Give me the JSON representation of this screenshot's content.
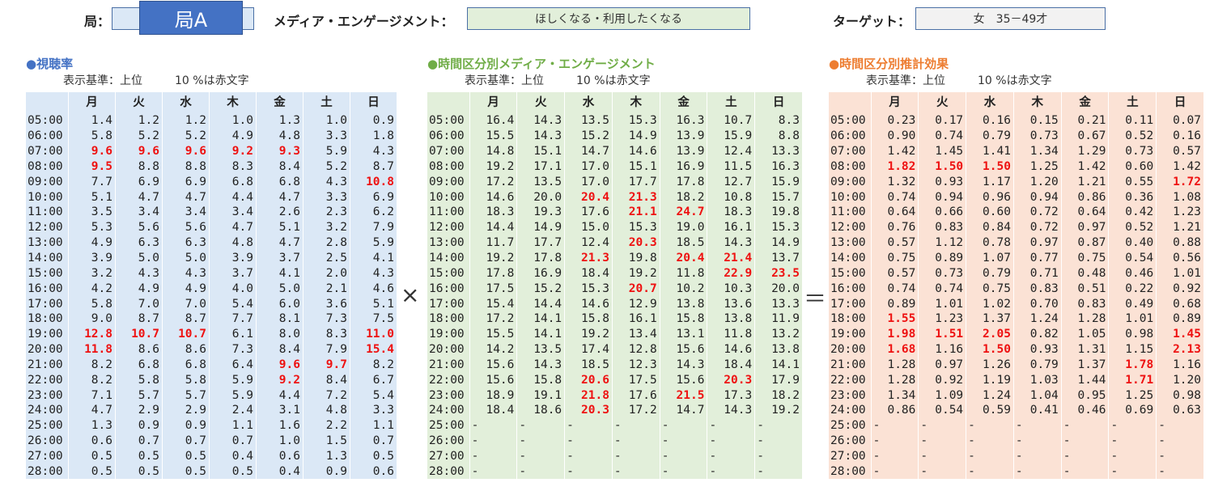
{
  "header": {
    "station_label": "局：",
    "station_value": "局A",
    "media_label": "メディア・エンゲージメント：",
    "media_value": "ほしくなる・利用したくなる",
    "target_label": "ターゲット：",
    "target_value": "女　35－49才"
  },
  "days": [
    "月",
    "火",
    "水",
    "木",
    "金",
    "土",
    "日"
  ],
  "operators": {
    "times": "×",
    "equals": "＝"
  },
  "sections": [
    {
      "title": "●視聴率",
      "title_color": "#4472c4",
      "sub_basis": "表示基準：上位",
      "sub_pct": "10 %は赤文字",
      "rows": [
        {
          "time": "05:00",
          "values": [
            "1.4",
            "1.2",
            "1.2",
            "1.0",
            "1.3",
            "1.0",
            "0.9"
          ],
          "highlight": []
        },
        {
          "time": "06:00",
          "values": [
            "5.8",
            "5.2",
            "5.2",
            "4.9",
            "4.8",
            "3.3",
            "1.8"
          ],
          "highlight": []
        },
        {
          "time": "07:00",
          "values": [
            "9.6",
            "9.6",
            "9.6",
            "9.2",
            "9.3",
            "5.9",
            "4.3"
          ],
          "highlight": [
            0,
            1,
            2,
            3,
            4
          ]
        },
        {
          "time": "08:00",
          "values": [
            "9.5",
            "8.8",
            "8.8",
            "8.3",
            "8.4",
            "5.2",
            "8.7"
          ],
          "highlight": [
            0
          ]
        },
        {
          "time": "09:00",
          "values": [
            "7.7",
            "6.9",
            "6.9",
            "6.8",
            "6.8",
            "4.3",
            "10.8"
          ],
          "highlight": [
            6
          ]
        },
        {
          "time": "10:00",
          "values": [
            "5.1",
            "4.7",
            "4.7",
            "4.4",
            "4.7",
            "3.3",
            "6.9"
          ],
          "highlight": []
        },
        {
          "time": "11:00",
          "values": [
            "3.5",
            "3.4",
            "3.4",
            "3.4",
            "2.6",
            "2.3",
            "6.2"
          ],
          "highlight": []
        },
        {
          "time": "12:00",
          "values": [
            "5.3",
            "5.6",
            "5.6",
            "4.7",
            "5.1",
            "3.2",
            "7.9"
          ],
          "highlight": []
        },
        {
          "time": "13:00",
          "values": [
            "4.9",
            "6.3",
            "6.3",
            "4.8",
            "4.7",
            "2.8",
            "5.9"
          ],
          "highlight": []
        },
        {
          "time": "14:00",
          "values": [
            "3.9",
            "5.0",
            "5.0",
            "3.9",
            "3.7",
            "2.5",
            "4.1"
          ],
          "highlight": []
        },
        {
          "time": "15:00",
          "values": [
            "3.2",
            "4.3",
            "4.3",
            "3.7",
            "4.1",
            "2.0",
            "4.3"
          ],
          "highlight": []
        },
        {
          "time": "16:00",
          "values": [
            "4.2",
            "4.9",
            "4.9",
            "4.0",
            "5.0",
            "2.1",
            "4.6"
          ],
          "highlight": []
        },
        {
          "time": "17:00",
          "values": [
            "5.8",
            "7.0",
            "7.0",
            "5.4",
            "6.0",
            "3.6",
            "5.1"
          ],
          "highlight": []
        },
        {
          "time": "18:00",
          "values": [
            "9.0",
            "8.7",
            "8.7",
            "7.7",
            "8.1",
            "7.3",
            "7.5"
          ],
          "highlight": []
        },
        {
          "time": "19:00",
          "values": [
            "12.8",
            "10.7",
            "10.7",
            "6.1",
            "8.0",
            "8.3",
            "11.0"
          ],
          "highlight": [
            0,
            1,
            2,
            6
          ]
        },
        {
          "time": "20:00",
          "values": [
            "11.8",
            "8.6",
            "8.6",
            "7.3",
            "8.4",
            "7.9",
            "15.4"
          ],
          "highlight": [
            0,
            6
          ]
        },
        {
          "time": "21:00",
          "values": [
            "8.2",
            "6.8",
            "6.8",
            "6.4",
            "9.6",
            "9.7",
            "8.2"
          ],
          "highlight": [
            4,
            5
          ]
        },
        {
          "time": "22:00",
          "values": [
            "8.2",
            "5.8",
            "5.8",
            "5.9",
            "9.2",
            "8.4",
            "6.7"
          ],
          "highlight": [
            4
          ]
        },
        {
          "time": "23:00",
          "values": [
            "7.1",
            "5.7",
            "5.7",
            "5.9",
            "4.4",
            "7.2",
            "5.4"
          ],
          "highlight": []
        },
        {
          "time": "24:00",
          "values": [
            "4.7",
            "2.9",
            "2.9",
            "2.4",
            "3.1",
            "4.8",
            "3.3"
          ],
          "highlight": []
        },
        {
          "time": "25:00",
          "values": [
            "1.3",
            "0.9",
            "0.9",
            "1.1",
            "1.6",
            "2.2",
            "1.1"
          ],
          "highlight": []
        },
        {
          "time": "26:00",
          "values": [
            "0.6",
            "0.7",
            "0.7",
            "0.7",
            "1.0",
            "1.5",
            "0.7"
          ],
          "highlight": []
        },
        {
          "time": "27:00",
          "values": [
            "0.5",
            "0.5",
            "0.5",
            "0.4",
            "0.6",
            "1.3",
            "0.5"
          ],
          "highlight": []
        },
        {
          "time": "28:00",
          "values": [
            "0.5",
            "0.5",
            "0.5",
            "0.5",
            "0.4",
            "0.9",
            "0.6"
          ],
          "highlight": []
        }
      ]
    },
    {
      "title": "●時間区分別メディア・エンゲージメント",
      "title_color": "#70ad47",
      "sub_basis": "表示基準：上位",
      "sub_pct": "10 %は赤文字",
      "rows": [
        {
          "time": "05:00",
          "values": [
            "16.4",
            "14.3",
            "13.5",
            "15.3",
            "16.3",
            "10.7",
            "8.3"
          ],
          "highlight": []
        },
        {
          "time": "06:00",
          "values": [
            "15.5",
            "14.3",
            "15.2",
            "14.9",
            "13.9",
            "15.9",
            "8.8"
          ],
          "highlight": []
        },
        {
          "time": "07:00",
          "values": [
            "14.8",
            "15.1",
            "14.7",
            "14.6",
            "13.9",
            "12.4",
            "13.3"
          ],
          "highlight": []
        },
        {
          "time": "08:00",
          "values": [
            "19.2",
            "17.1",
            "17.0",
            "15.1",
            "16.9",
            "11.5",
            "16.3"
          ],
          "highlight": []
        },
        {
          "time": "09:00",
          "values": [
            "17.2",
            "13.5",
            "17.0",
            "17.7",
            "17.8",
            "12.7",
            "15.9"
          ],
          "highlight": []
        },
        {
          "time": "10:00",
          "values": [
            "14.6",
            "20.0",
            "20.4",
            "21.3",
            "18.2",
            "10.8",
            "15.7"
          ],
          "highlight": [
            2,
            3
          ]
        },
        {
          "time": "11:00",
          "values": [
            "18.3",
            "19.3",
            "17.6",
            "21.1",
            "24.7",
            "18.3",
            "19.8"
          ],
          "highlight": [
            3,
            4
          ]
        },
        {
          "time": "12:00",
          "values": [
            "14.4",
            "14.9",
            "15.0",
            "15.3",
            "19.0",
            "16.1",
            "15.3"
          ],
          "highlight": []
        },
        {
          "time": "13:00",
          "values": [
            "11.7",
            "17.7",
            "12.4",
            "20.3",
            "18.5",
            "14.3",
            "14.9"
          ],
          "highlight": [
            3
          ]
        },
        {
          "time": "14:00",
          "values": [
            "19.2",
            "17.8",
            "21.3",
            "19.8",
            "20.4",
            "21.4",
            "13.7"
          ],
          "highlight": [
            2,
            4,
            5
          ]
        },
        {
          "time": "15:00",
          "values": [
            "17.8",
            "16.9",
            "18.4",
            "19.2",
            "11.8",
            "22.9",
            "23.5"
          ],
          "highlight": [
            5,
            6
          ]
        },
        {
          "time": "16:00",
          "values": [
            "17.5",
            "15.2",
            "15.3",
            "20.7",
            "10.2",
            "10.3",
            "20.0"
          ],
          "highlight": [
            3
          ]
        },
        {
          "time": "17:00",
          "values": [
            "15.4",
            "14.4",
            "14.6",
            "12.9",
            "13.8",
            "13.6",
            "13.3"
          ],
          "highlight": []
        },
        {
          "time": "18:00",
          "values": [
            "17.2",
            "14.1",
            "15.8",
            "16.1",
            "15.8",
            "13.8",
            "11.9"
          ],
          "highlight": []
        },
        {
          "time": "19:00",
          "values": [
            "15.5",
            "14.1",
            "19.2",
            "13.4",
            "13.1",
            "11.8",
            "13.2"
          ],
          "highlight": []
        },
        {
          "time": "20:00",
          "values": [
            "14.2",
            "13.5",
            "17.4",
            "12.8",
            "15.6",
            "14.6",
            "13.8"
          ],
          "highlight": []
        },
        {
          "time": "21:00",
          "values": [
            "15.6",
            "14.3",
            "18.5",
            "12.3",
            "14.3",
            "18.4",
            "14.1"
          ],
          "highlight": []
        },
        {
          "time": "22:00",
          "values": [
            "15.6",
            "15.8",
            "20.6",
            "17.5",
            "15.6",
            "20.3",
            "17.9"
          ],
          "highlight": [
            2,
            5
          ]
        },
        {
          "time": "23:00",
          "values": [
            "18.9",
            "19.1",
            "21.8",
            "17.6",
            "21.5",
            "17.3",
            "18.2"
          ],
          "highlight": [
            2,
            4
          ]
        },
        {
          "time": "24:00",
          "values": [
            "18.4",
            "18.6",
            "20.3",
            "17.2",
            "14.7",
            "14.3",
            "19.2"
          ],
          "highlight": [
            2
          ]
        },
        {
          "time": "25:00",
          "values": [
            "-",
            "-",
            "-",
            "-",
            "-",
            "-",
            "-"
          ],
          "highlight": []
        },
        {
          "time": "26:00",
          "values": [
            "-",
            "-",
            "-",
            "-",
            "-",
            "-",
            "-"
          ],
          "highlight": []
        },
        {
          "time": "27:00",
          "values": [
            "-",
            "-",
            "-",
            "-",
            "-",
            "-",
            "-"
          ],
          "highlight": []
        },
        {
          "time": "28:00",
          "values": [
            "-",
            "-",
            "-",
            "-",
            "-",
            "-",
            "-"
          ],
          "highlight": []
        }
      ]
    },
    {
      "title": "●時間区分別推計効果",
      "title_color": "#ed7d31",
      "sub_basis": "表示基準：上位",
      "sub_pct": "10 %は赤文字",
      "rows": [
        {
          "time": "05:00",
          "values": [
            "0.23",
            "0.17",
            "0.16",
            "0.15",
            "0.21",
            "0.11",
            "0.07"
          ],
          "highlight": []
        },
        {
          "time": "06:00",
          "values": [
            "0.90",
            "0.74",
            "0.79",
            "0.73",
            "0.67",
            "0.52",
            "0.16"
          ],
          "highlight": []
        },
        {
          "time": "07:00",
          "values": [
            "1.42",
            "1.45",
            "1.41",
            "1.34",
            "1.29",
            "0.73",
            "0.57"
          ],
          "highlight": []
        },
        {
          "time": "08:00",
          "values": [
            "1.82",
            "1.50",
            "1.50",
            "1.25",
            "1.42",
            "0.60",
            "1.42"
          ],
          "highlight": [
            0,
            1,
            2
          ]
        },
        {
          "time": "09:00",
          "values": [
            "1.32",
            "0.93",
            "1.17",
            "1.20",
            "1.21",
            "0.55",
            "1.72"
          ],
          "highlight": [
            6
          ]
        },
        {
          "time": "10:00",
          "values": [
            "0.74",
            "0.94",
            "0.96",
            "0.94",
            "0.86",
            "0.36",
            "1.08"
          ],
          "highlight": []
        },
        {
          "time": "11:00",
          "values": [
            "0.64",
            "0.66",
            "0.60",
            "0.72",
            "0.64",
            "0.42",
            "1.23"
          ],
          "highlight": []
        },
        {
          "time": "12:00",
          "values": [
            "0.76",
            "0.83",
            "0.84",
            "0.72",
            "0.97",
            "0.52",
            "1.21"
          ],
          "highlight": []
        },
        {
          "time": "13:00",
          "values": [
            "0.57",
            "1.12",
            "0.78",
            "0.97",
            "0.87",
            "0.40",
            "0.88"
          ],
          "highlight": []
        },
        {
          "time": "14:00",
          "values": [
            "0.75",
            "0.89",
            "1.07",
            "0.77",
            "0.75",
            "0.54",
            "0.56"
          ],
          "highlight": []
        },
        {
          "time": "15:00",
          "values": [
            "0.57",
            "0.73",
            "0.79",
            "0.71",
            "0.48",
            "0.46",
            "1.01"
          ],
          "highlight": []
        },
        {
          "time": "16:00",
          "values": [
            "0.74",
            "0.74",
            "0.75",
            "0.83",
            "0.51",
            "0.22",
            "0.92"
          ],
          "highlight": []
        },
        {
          "time": "17:00",
          "values": [
            "0.89",
            "1.01",
            "1.02",
            "0.70",
            "0.83",
            "0.49",
            "0.68"
          ],
          "highlight": []
        },
        {
          "time": "18:00",
          "values": [
            "1.55",
            "1.23",
            "1.37",
            "1.24",
            "1.28",
            "1.01",
            "0.89"
          ],
          "highlight": [
            0
          ]
        },
        {
          "time": "19:00",
          "values": [
            "1.98",
            "1.51",
            "2.05",
            "0.82",
            "1.05",
            "0.98",
            "1.45"
          ],
          "highlight": [
            0,
            1,
            2,
            6
          ]
        },
        {
          "time": "20:00",
          "values": [
            "1.68",
            "1.16",
            "1.50",
            "0.93",
            "1.31",
            "1.15",
            "2.13"
          ],
          "highlight": [
            0,
            2,
            6
          ]
        },
        {
          "time": "21:00",
          "values": [
            "1.28",
            "0.97",
            "1.26",
            "0.79",
            "1.37",
            "1.78",
            "1.16"
          ],
          "highlight": [
            5
          ]
        },
        {
          "time": "22:00",
          "values": [
            "1.28",
            "0.92",
            "1.19",
            "1.03",
            "1.44",
            "1.71",
            "1.20"
          ],
          "highlight": [
            5
          ]
        },
        {
          "time": "23:00",
          "values": [
            "1.34",
            "1.09",
            "1.24",
            "1.04",
            "0.95",
            "1.25",
            "0.98"
          ],
          "highlight": []
        },
        {
          "time": "24:00",
          "values": [
            "0.86",
            "0.54",
            "0.59",
            "0.41",
            "0.46",
            "0.69",
            "0.63"
          ],
          "highlight": []
        },
        {
          "time": "25:00",
          "values": [
            "-",
            "-",
            "-",
            "-",
            "-",
            "-",
            "-"
          ],
          "highlight": []
        },
        {
          "time": "26:00",
          "values": [
            "-",
            "-",
            "-",
            "-",
            "-",
            "-",
            "-"
          ],
          "highlight": []
        },
        {
          "time": "27:00",
          "values": [
            "-",
            "-",
            "-",
            "-",
            "-",
            "-",
            "-"
          ],
          "highlight": []
        },
        {
          "time": "28:00",
          "values": [
            "-",
            "-",
            "-",
            "-",
            "-",
            "-",
            "-"
          ],
          "highlight": []
        }
      ]
    }
  ]
}
